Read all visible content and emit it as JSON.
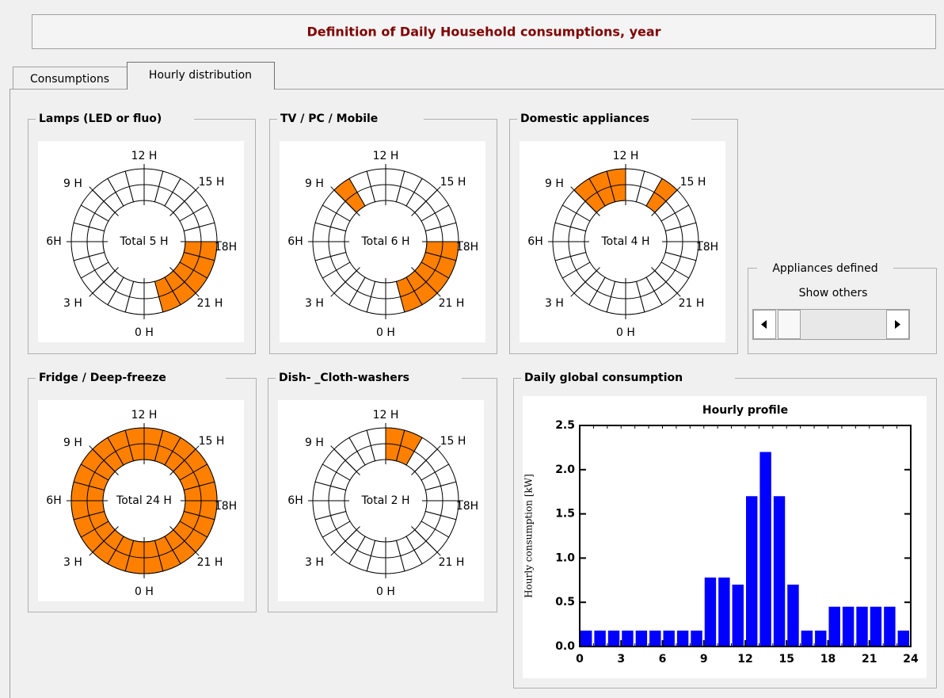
{
  "header": {
    "title": "Definition of Daily Household consumptions, year"
  },
  "tabs": [
    "Consumptions",
    "Hourly distribution"
  ],
  "clock_labels": [
    "12 H",
    "15 H",
    "18H",
    "21 H",
    "0 H",
    "3 H",
    "6H",
    "9 H"
  ],
  "clocks": [
    {
      "title": "Lamps (LED or fluo)",
      "total": "Total 5 H",
      "on_hours": [
        18,
        19,
        20,
        21,
        22
      ]
    },
    {
      "title": "TV / PC / Mobile",
      "total": "Total 6 H",
      "on_hours": [
        9,
        18,
        19,
        20,
        21,
        22
      ]
    },
    {
      "title": "Domestic appliances",
      "total": "Total 4 H",
      "on_hours": [
        9,
        10,
        11,
        14
      ]
    },
    {
      "title": "Fridge / Deep-freeze",
      "total": "Total 24 H",
      "on_hours": [
        0,
        1,
        2,
        3,
        4,
        5,
        6,
        7,
        8,
        9,
        10,
        11,
        12,
        13,
        14,
        15,
        16,
        17,
        18,
        19,
        20,
        21,
        22,
        23
      ]
    },
    {
      "title": "Dish- _Cloth-washers",
      "total": "Total 2 H",
      "on_hours": [
        12,
        13
      ]
    }
  ],
  "appliances": {
    "title": "Appliances defined",
    "button": "Show others"
  },
  "global_title": "Daily global consumption",
  "chart_data": {
    "type": "histogram",
    "title": "Hourly profile",
    "ylabel": "Hourly consumption [kW]",
    "bins": [
      0,
      1,
      2,
      3,
      4,
      5,
      6,
      7,
      8,
      9,
      10,
      11,
      12,
      13,
      14,
      15,
      16,
      17,
      18,
      19,
      20,
      21,
      22,
      23,
      24
    ],
    "values": [
      0.18,
      0.18,
      0.18,
      0.18,
      0.18,
      0.18,
      0.18,
      0.18,
      0.18,
      0.78,
      0.78,
      0.7,
      1.7,
      2.2,
      1.7,
      0.7,
      0.18,
      0.18,
      0.45,
      0.45,
      0.45,
      0.45,
      0.45,
      0.18
    ],
    "color": "#0000ff",
    "xlim": [
      0,
      24
    ],
    "xticks": [
      0,
      3,
      6,
      9,
      12,
      15,
      18,
      21,
      24
    ],
    "ylim": [
      0,
      2.5
    ],
    "yticks": [
      {
        "value": 0,
        "label": "0.0"
      },
      {
        "value": 0.5,
        "label": "0.5"
      },
      {
        "value": 1,
        "label": "1.0"
      },
      {
        "value": 1.5,
        "label": "1.5"
      },
      {
        "value": 2,
        "label": "2.0"
      },
      {
        "value": 2.5,
        "label": "2.5"
      }
    ]
  }
}
